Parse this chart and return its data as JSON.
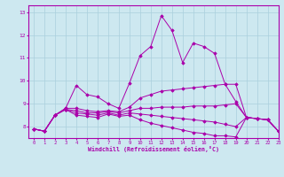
{
  "xlabel": "Windchill (Refroidissement éolien,°C)",
  "background_color": "#cde8f0",
  "grid_color": "#aacfdd",
  "line_color": "#aa00aa",
  "xlim": [
    -0.5,
    23
  ],
  "ylim": [
    7.5,
    13.3
  ],
  "yticks": [
    8,
    9,
    10,
    11,
    12,
    13
  ],
  "xticks": [
    0,
    1,
    2,
    3,
    4,
    5,
    6,
    7,
    8,
    9,
    10,
    11,
    12,
    13,
    14,
    15,
    16,
    17,
    18,
    19,
    20,
    21,
    22,
    23
  ],
  "lines": [
    [
      7.9,
      7.8,
      8.5,
      8.8,
      9.8,
      9.4,
      9.3,
      9.0,
      8.8,
      9.9,
      11.1,
      11.5,
      12.85,
      12.2,
      10.8,
      11.65,
      11.5,
      11.2,
      9.85,
      9.1,
      8.4,
      8.35,
      8.3,
      7.8
    ],
    [
      7.9,
      7.8,
      8.5,
      8.8,
      8.8,
      8.7,
      8.65,
      8.7,
      8.65,
      8.85,
      9.25,
      9.4,
      9.55,
      9.6,
      9.65,
      9.7,
      9.75,
      9.8,
      9.85,
      9.85,
      8.4,
      8.35,
      8.3,
      7.8
    ],
    [
      7.9,
      7.8,
      8.5,
      8.75,
      8.7,
      8.6,
      8.6,
      8.65,
      8.6,
      8.7,
      8.8,
      8.8,
      8.85,
      8.85,
      8.85,
      8.9,
      8.9,
      8.9,
      8.95,
      9.0,
      8.4,
      8.35,
      8.3,
      7.8
    ],
    [
      7.9,
      7.8,
      8.5,
      8.75,
      8.6,
      8.55,
      8.5,
      8.6,
      8.5,
      8.6,
      8.55,
      8.5,
      8.45,
      8.4,
      8.35,
      8.3,
      8.25,
      8.2,
      8.1,
      8.0,
      8.4,
      8.35,
      8.3,
      7.8
    ],
    [
      7.9,
      7.8,
      8.5,
      8.75,
      8.5,
      8.45,
      8.4,
      8.55,
      8.45,
      8.5,
      8.3,
      8.15,
      8.05,
      7.95,
      7.85,
      7.75,
      7.7,
      7.6,
      7.6,
      7.55,
      8.4,
      8.35,
      8.3,
      7.8
    ]
  ]
}
